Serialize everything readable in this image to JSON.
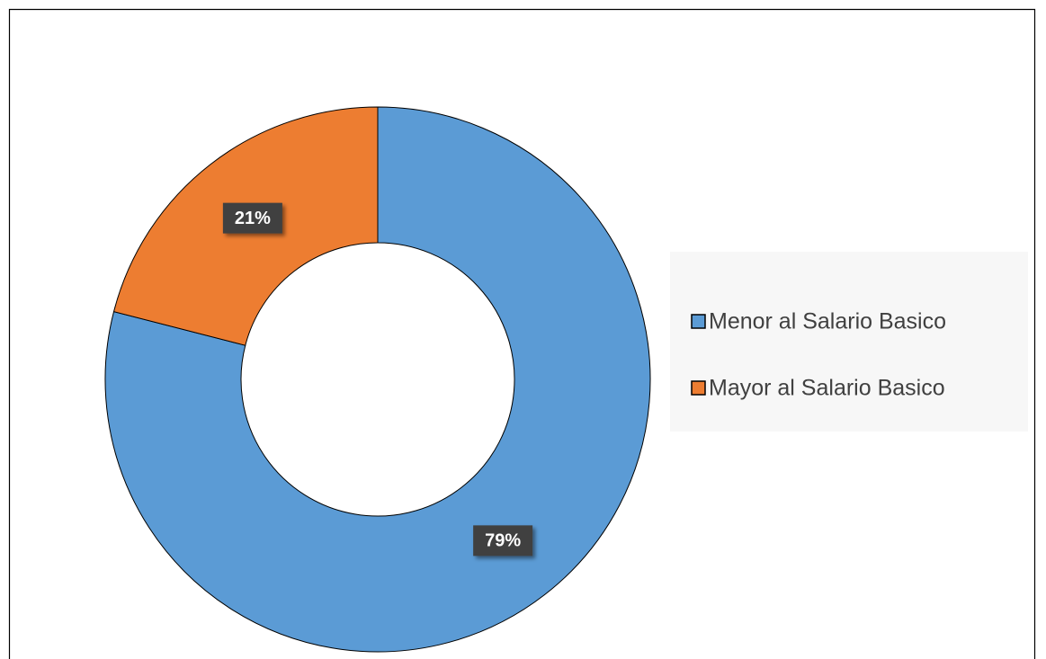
{
  "chart_data": {
    "type": "donut",
    "categories": [
      "Menor al Salario Basico",
      "Mayor al Salario Basico"
    ],
    "values": [
      79,
      21
    ],
    "value_labels": [
      "79%",
      "21%"
    ],
    "colors": [
      "#5b9bd5",
      "#ed7d31"
    ],
    "legend": "right"
  }
}
